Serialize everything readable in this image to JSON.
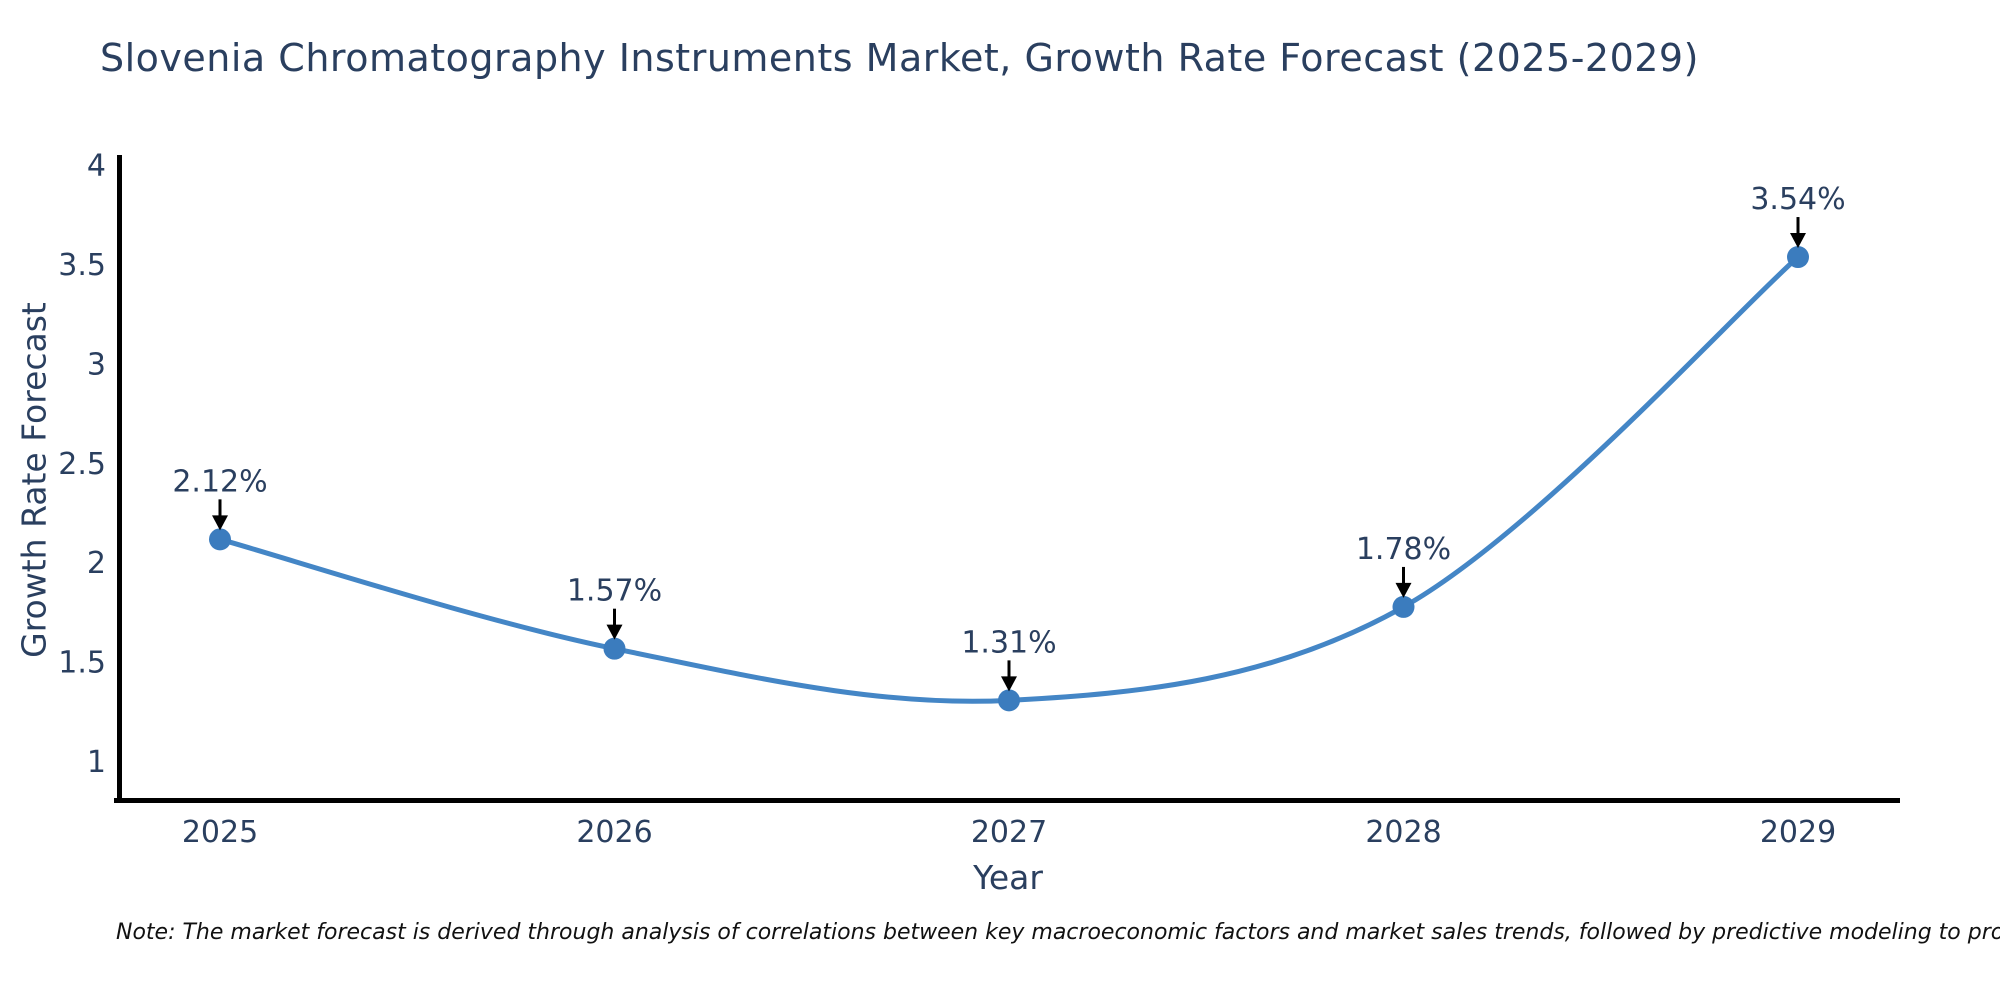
{
  "figure": {
    "note": "Note: The market forecast is derived through analysis of correlations between key macroeconomic factors and market sales trends, followed by predictive modeling to project future sales"
  },
  "chart_data": {
    "type": "line",
    "line_shape": "spline",
    "title": "Slovenia Chromatography Instruments Market, Growth Rate Forecast (2025-2029)",
    "xlabel": "Year",
    "ylabel": "Growth Rate Forecast",
    "categories": [
      "2025",
      "2026",
      "2027",
      "2028",
      "2029"
    ],
    "values": [
      2.12,
      1.57,
      1.31,
      1.78,
      3.54
    ],
    "point_labels": [
      "2.12%",
      "1.57%",
      "1.31%",
      "1.78%",
      "3.54%"
    ],
    "yticks": [
      "1",
      "1.5",
      "2",
      "2.5",
      "3",
      "3.5",
      "4"
    ],
    "ylim": [
      0.8,
      4.05
    ],
    "grid": false,
    "legend": "none",
    "marker": "circle",
    "annotation_arrows": true,
    "colors": {
      "line": "#4486c6",
      "marker": "#3b7cbe",
      "text": "#2a3f5f",
      "annotation": "#2a3f5f",
      "axis": "#000000",
      "arrow": "#000000",
      "note_text": "#111111",
      "background": "#ffffff"
    }
  }
}
